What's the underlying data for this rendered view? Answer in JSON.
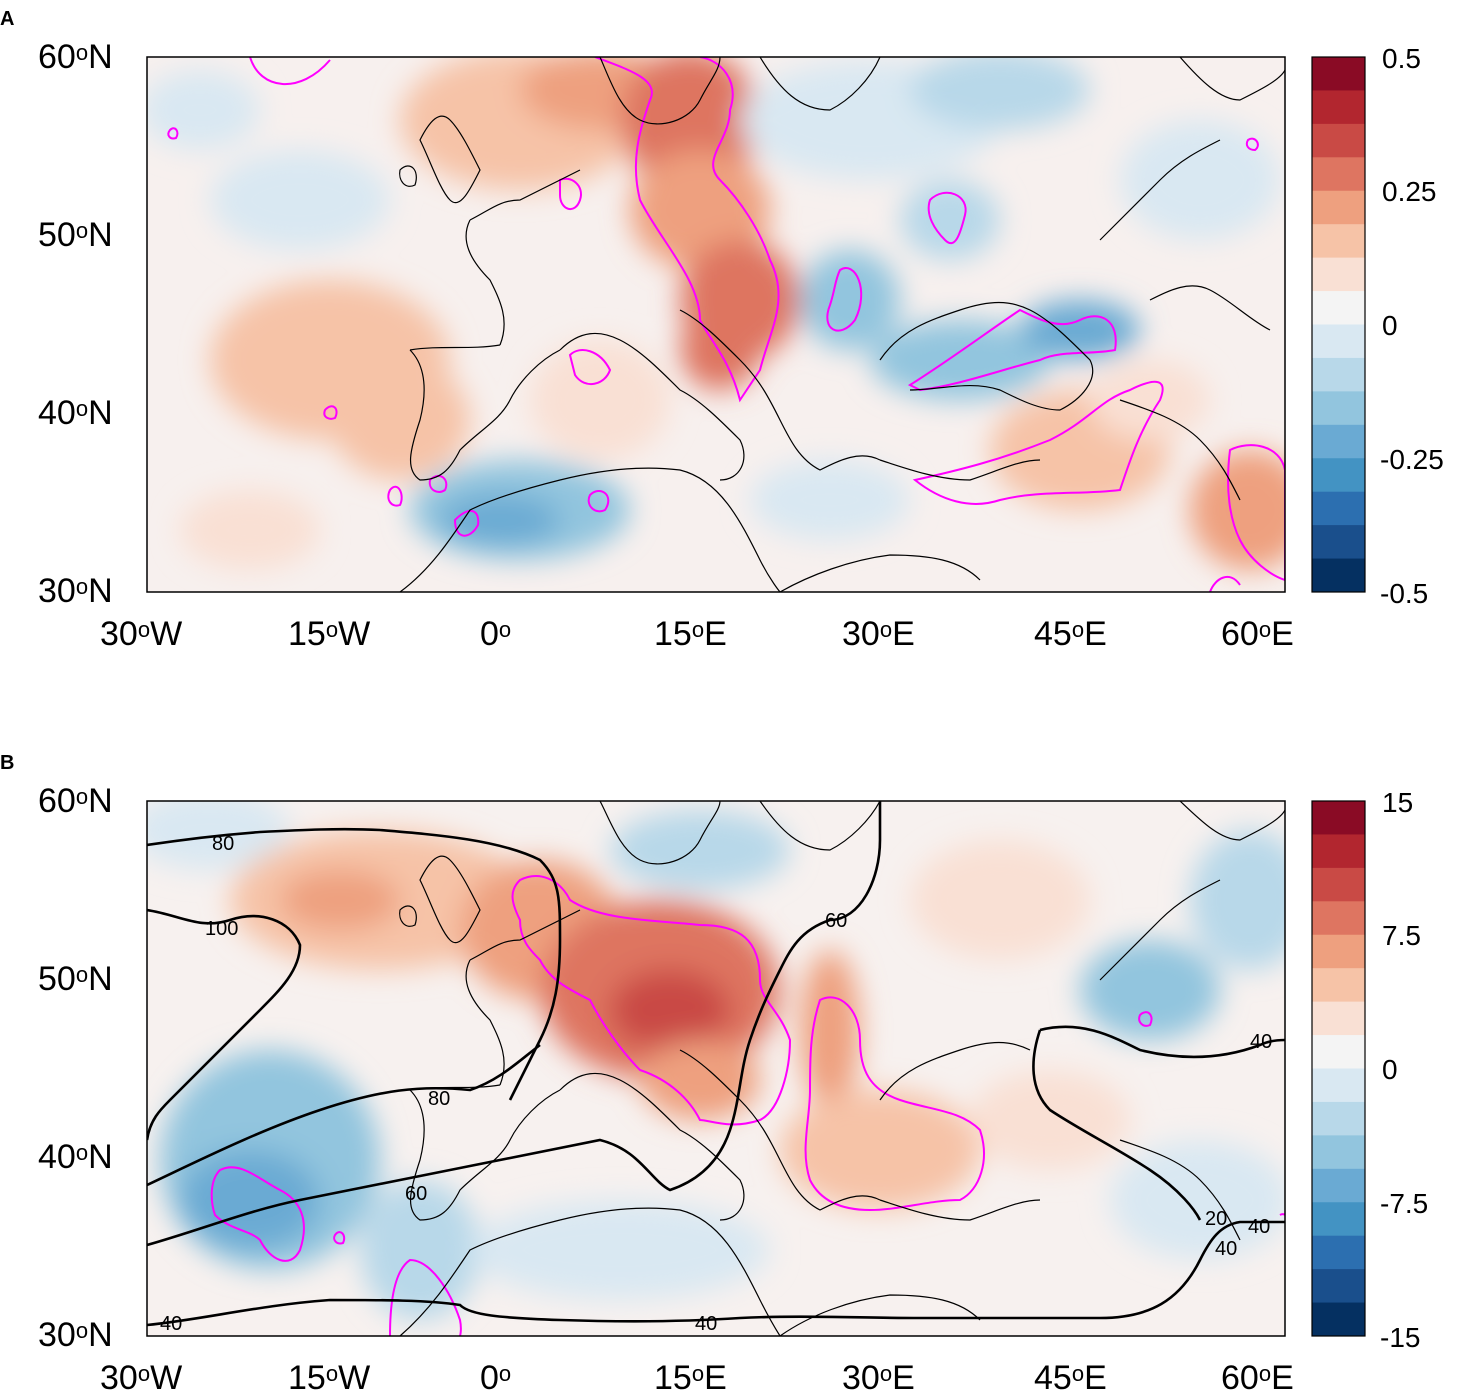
{
  "panels": [
    {
      "id": "A",
      "label": "A",
      "lat_labels": [
        "60",
        "50",
        "40",
        "30"
      ],
      "lon_labels": [
        "30",
        "15",
        "0",
        "15",
        "30",
        "45",
        "60"
      ],
      "lon_suffix": [
        "W",
        "W",
        "",
        "E",
        "E",
        "E",
        "E"
      ],
      "deg": "o",
      "north": "N",
      "colorbar": {
        "ticks": [
          "0.5",
          "0.25",
          "0",
          "-0.25",
          "-0.5"
        ],
        "min": -0.5,
        "max": 0.5
      }
    },
    {
      "id": "B",
      "label": "B",
      "lat_labels": [
        "60",
        "50",
        "40",
        "30"
      ],
      "lon_labels": [
        "30",
        "15",
        "0",
        "15",
        "30",
        "45",
        "60"
      ],
      "lon_suffix": [
        "W",
        "W",
        "",
        "E",
        "E",
        "E",
        "E"
      ],
      "deg": "o",
      "north": "N",
      "colorbar": {
        "ticks": [
          "15",
          "7.5",
          "0",
          "-7.5",
          "-15"
        ],
        "min": -15,
        "max": 15
      },
      "contour_labels": [
        "80",
        "100",
        "80",
        "60",
        "60",
        "40",
        "40",
        "40",
        "40",
        "40",
        "20"
      ]
    }
  ],
  "colors": {
    "scale": [
      "#053061",
      "#1a4f8c",
      "#2c6fb0",
      "#4393c3",
      "#6aaad3",
      "#92c5de",
      "#b8d8e9",
      "#d9e8f2",
      "#f4f4f4",
      "#f9e0d4",
      "#f6c3a7",
      "#eea07f",
      "#de7561",
      "#c94a45",
      "#b2262f",
      "#8a0b25"
    ],
    "significance": "#ff00ff",
    "contours": "#000000"
  }
}
